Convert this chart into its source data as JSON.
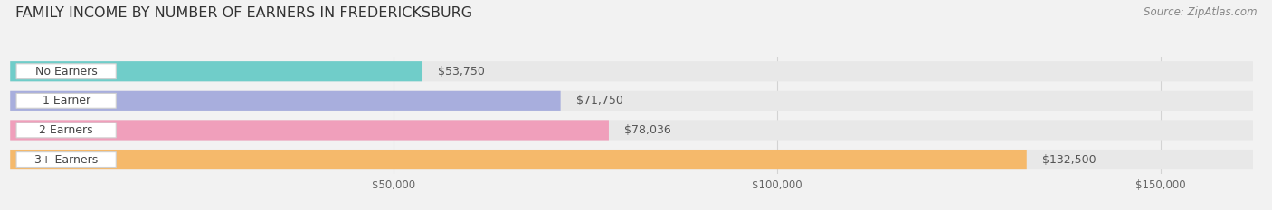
{
  "title": "FAMILY INCOME BY NUMBER OF EARNERS IN FREDERICKSBURG",
  "source": "Source: ZipAtlas.com",
  "categories": [
    "No Earners",
    "1 Earner",
    "2 Earners",
    "3+ Earners"
  ],
  "values": [
    53750,
    71750,
    78036,
    132500
  ],
  "bar_colors": [
    "#70cdc9",
    "#a8aedd",
    "#f09fbb",
    "#f5b96b"
  ],
  "value_labels": [
    "$53,750",
    "$71,750",
    "$78,036",
    "$132,500"
  ],
  "xlim": [
    0,
    162000
  ],
  "xticks": [
    50000,
    100000,
    150000
  ],
  "xtick_labels": [
    "$50,000",
    "$100,000",
    "$150,000"
  ],
  "bg_color": "#f2f2f2",
  "bar_bg_color": "#e8e8e8",
  "title_fontsize": 11.5,
  "source_fontsize": 8.5,
  "bar_height": 0.68,
  "value_label_color": "#555555",
  "value_label_color_on_bar": "#ffffff",
  "grid_color": "#cccccc",
  "pill_text_color": "#444444"
}
